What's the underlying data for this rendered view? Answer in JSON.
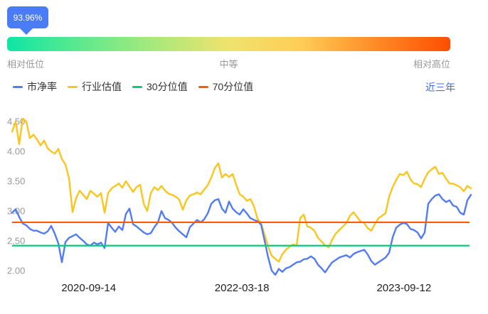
{
  "tooltip": {
    "value": "93.96%"
  },
  "gauge": {
    "labels": {
      "low": "相对低位",
      "mid": "中等",
      "high": "相对高位"
    },
    "gradient": [
      "#0DE6A5",
      "#5FE98D",
      "#A8E97C",
      "#EFE36E",
      "#FFCC55",
      "#FF8A26",
      "#FF4E00"
    ]
  },
  "legend": {
    "items": [
      {
        "label": "市净率",
        "color": "#527CEF"
      },
      {
        "label": "行业估值",
        "color": "#FBC51D"
      },
      {
        "label": "30分位值",
        "color": "#10C97F"
      },
      {
        "label": "70分位值",
        "color": "#FF5B05"
      }
    ]
  },
  "period_selector": {
    "label": "近三年",
    "color": "#3D6DEE"
  },
  "chart_data": {
    "type": "line",
    "title": "",
    "xlabel": "",
    "ylabel": "",
    "grid": false,
    "legend_position": "top-left",
    "ylim": [
      1.9,
      4.6
    ],
    "y_ticks": [
      "4.50",
      "4.00",
      "3.50",
      "3.00",
      "2.50",
      "2.00"
    ],
    "x_ticks": [
      {
        "label": "2020-09-14",
        "pos": 0.167
      },
      {
        "label": "2022-03-18",
        "pos": 0.501
      },
      {
        "label": "2023-09-12",
        "pos": 0.854
      }
    ],
    "reference_lines": [
      {
        "name": "30分位值",
        "value": 2.42,
        "color": "#10C97F"
      },
      {
        "name": "70分位值",
        "value": 2.81,
        "color": "#FF5B05"
      }
    ],
    "series": [
      {
        "name": "市净率",
        "color": "#527CEF",
        "values": [
          2.97,
          3.03,
          2.9,
          2.79,
          2.76,
          2.7,
          2.67,
          2.67,
          2.64,
          2.62,
          2.66,
          2.75,
          2.62,
          2.46,
          2.14,
          2.48,
          2.55,
          2.58,
          2.61,
          2.55,
          2.5,
          2.44,
          2.42,
          2.47,
          2.44,
          2.47,
          2.38,
          2.8,
          2.72,
          2.65,
          2.74,
          2.68,
          2.95,
          3.04,
          2.78,
          2.74,
          2.69,
          2.64,
          2.61,
          2.63,
          2.73,
          2.81,
          3.0,
          2.88,
          2.85,
          2.8,
          2.72,
          2.66,
          2.61,
          2.56,
          2.73,
          2.79,
          2.85,
          2.81,
          2.86,
          2.96,
          3.12,
          3.18,
          3.2,
          3.04,
          2.97,
          3.16,
          3.04,
          2.98,
          2.94,
          3.03,
          2.96,
          2.88,
          2.85,
          2.83,
          2.77,
          2.5,
          2.22,
          2.0,
          1.93,
          2.03,
          1.98,
          2.04,
          2.06,
          2.1,
          2.14,
          2.15,
          2.19,
          2.2,
          2.24,
          2.2,
          2.1,
          2.04,
          1.97,
          2.06,
          2.14,
          2.18,
          2.22,
          2.24,
          2.26,
          2.22,
          2.28,
          2.31,
          2.33,
          2.35,
          2.27,
          2.16,
          2.1,
          2.14,
          2.18,
          2.22,
          2.3,
          2.56,
          2.72,
          2.77,
          2.8,
          2.78,
          2.7,
          2.68,
          2.64,
          2.54,
          2.64,
          3.12,
          3.2,
          3.26,
          3.28,
          3.2,
          3.15,
          3.18,
          3.09,
          3.07,
          2.97,
          2.94,
          3.18,
          3.27
        ]
      },
      {
        "name": "行业估值",
        "color": "#FBC51D",
        "values": [
          4.33,
          4.5,
          4.12,
          4.55,
          4.5,
          4.22,
          4.28,
          4.2,
          4.1,
          4.18,
          4.05,
          4.0,
          3.96,
          4.04,
          3.87,
          3.78,
          3.55,
          2.98,
          3.22,
          3.34,
          3.27,
          3.2,
          3.34,
          3.29,
          3.24,
          3.3,
          2.97,
          3.3,
          3.38,
          3.42,
          3.46,
          3.39,
          3.5,
          3.41,
          3.32,
          3.4,
          3.44,
          3.12,
          3.0,
          3.3,
          3.4,
          3.35,
          3.42,
          3.34,
          3.29,
          3.27,
          3.24,
          3.19,
          3.02,
          3.18,
          3.26,
          3.28,
          3.31,
          3.28,
          3.36,
          3.43,
          3.56,
          3.72,
          3.8,
          3.56,
          3.62,
          3.57,
          3.62,
          3.44,
          3.28,
          3.24,
          3.17,
          3.2,
          3.08,
          2.87,
          2.8,
          2.6,
          2.4,
          2.25,
          2.2,
          2.15,
          2.28,
          2.35,
          2.4,
          2.44,
          2.42,
          2.88,
          2.94,
          2.74,
          2.72,
          2.67,
          2.55,
          2.49,
          2.42,
          2.39,
          2.52,
          2.62,
          2.68,
          2.74,
          2.8,
          2.92,
          2.98,
          2.9,
          2.82,
          2.8,
          2.71,
          2.67,
          2.78,
          2.88,
          2.92,
          2.96,
          3.24,
          3.4,
          3.52,
          3.62,
          3.6,
          3.66,
          3.53,
          3.46,
          3.45,
          3.4,
          3.54,
          3.65,
          3.7,
          3.74,
          3.62,
          3.64,
          3.54,
          3.46,
          3.46,
          3.43,
          3.4,
          3.33,
          3.42,
          3.38
        ]
      }
    ]
  }
}
